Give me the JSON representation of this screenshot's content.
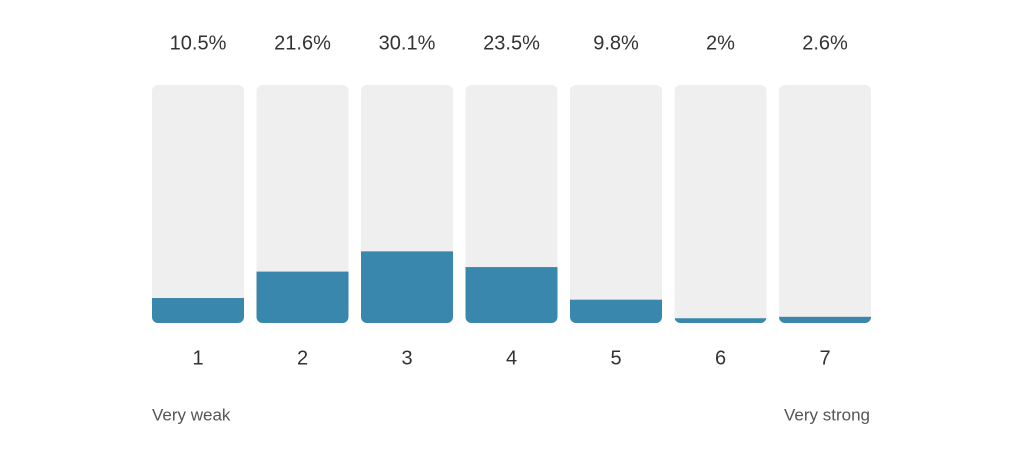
{
  "chart_data": {
    "type": "bar",
    "categories": [
      "1",
      "2",
      "3",
      "4",
      "5",
      "6",
      "7"
    ],
    "values": [
      10.5,
      21.6,
      30.1,
      23.5,
      9.8,
      2,
      2.6
    ],
    "value_labels": [
      "10.5%",
      "21.6%",
      "30.1%",
      "23.5%",
      "9.8%",
      "2%",
      "2.6%"
    ],
    "color": "#3a87ad",
    "ylim": [
      0,
      100
    ],
    "annotations": [
      "Very weak",
      "Very strong"
    ]
  }
}
